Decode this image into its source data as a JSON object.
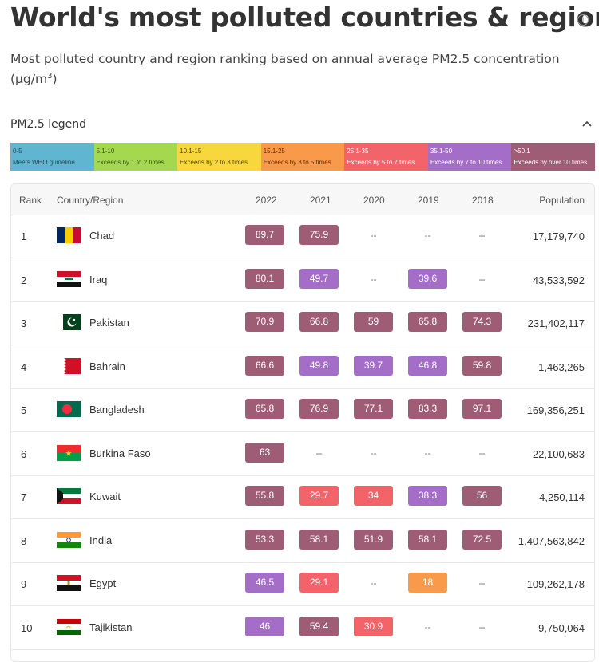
{
  "header": {
    "title": "World's most polluted countries & regions",
    "subtitle": "Most polluted country and region ranking based on annual average PM2.5 concentration (µg/m",
    "subtitle_sup": "3",
    "subtitle_end": ")",
    "info_icon": "info-icon"
  },
  "legend": {
    "title": "PM2.5 legend",
    "toggle_icon": "chevron-up-icon",
    "items": [
      {
        "range": "0-5",
        "label": "Meets WHO guideline",
        "color": "#60b6d1",
        "text_color": "#2b4a55"
      },
      {
        "range": "5.1-10",
        "label": "Exceeds by 1 to 2 times",
        "color": "#a3d84f",
        "text_color": "#3d5a12"
      },
      {
        "range": "10.1-15",
        "label": "Exceeds by 2 to 3 times",
        "color": "#f7d63e",
        "text_color": "#5a4c05"
      },
      {
        "range": "15.1-25",
        "label": "Exceeds by 3 to 5 times",
        "color": "#f99a4b",
        "text_color": "#5e3008"
      },
      {
        "range": "25.1-35",
        "label": "Exceeds by 5 to 7 times",
        "color": "#f2636a",
        "text_color": "#ffffff"
      },
      {
        "range": "35.1-50",
        "label": "Exceeds by 7 to 10 times",
        "color": "#a46dc7",
        "text_color": "#ffffff"
      },
      {
        "range": ">50.1",
        "label": "Exceeds by over 10 times",
        "color": "#9e5d74",
        "text_color": "#ffffff"
      }
    ]
  },
  "table": {
    "columns": {
      "rank": "Rank",
      "country": "Country/Region",
      "y2022": "2022",
      "y2021": "2021",
      "y2020": "2020",
      "y2019": "2019",
      "y2018": "2018",
      "population": "Population"
    },
    "empty_value": "--",
    "rows": [
      {
        "rank": "1",
        "country": "Chad",
        "flag": "chad",
        "values": [
          "89.7",
          "75.9",
          "--",
          "--",
          "--"
        ],
        "population": "17,179,740"
      },
      {
        "rank": "2",
        "country": "Iraq",
        "flag": "iraq",
        "values": [
          "80.1",
          "49.7",
          "--",
          "39.6",
          "--"
        ],
        "population": "43,533,592"
      },
      {
        "rank": "3",
        "country": "Pakistan",
        "flag": "pakistan",
        "values": [
          "70.9",
          "66.8",
          "59",
          "65.8",
          "74.3"
        ],
        "population": "231,402,117"
      },
      {
        "rank": "4",
        "country": "Bahrain",
        "flag": "bahrain",
        "values": [
          "66.6",
          "49.8",
          "39.7",
          "46.8",
          "59.8"
        ],
        "population": "1,463,265"
      },
      {
        "rank": "5",
        "country": "Bangladesh",
        "flag": "bangladesh",
        "values": [
          "65.8",
          "76.9",
          "77.1",
          "83.3",
          "97.1"
        ],
        "population": "169,356,251"
      },
      {
        "rank": "6",
        "country": "Burkina Faso",
        "flag": "burkina-faso",
        "values": [
          "63",
          "--",
          "--",
          "--",
          "--"
        ],
        "population": "22,100,683"
      },
      {
        "rank": "7",
        "country": "Kuwait",
        "flag": "kuwait",
        "values": [
          "55.8",
          "29.7",
          "34",
          "38.3",
          "56"
        ],
        "population": "4,250,114"
      },
      {
        "rank": "8",
        "country": "India",
        "flag": "india",
        "values": [
          "53.3",
          "58.1",
          "51.9",
          "58.1",
          "72.5"
        ],
        "population": "1,407,563,842"
      },
      {
        "rank": "9",
        "country": "Egypt",
        "flag": "egypt",
        "values": [
          "46.5",
          "29.1",
          "--",
          "18",
          "--"
        ],
        "population": "109,262,178"
      },
      {
        "rank": "10",
        "country": "Tajikistan",
        "flag": "tajikistan",
        "values": [
          "46",
          "59.4",
          "30.9",
          "--",
          "--"
        ],
        "population": "9,750,064"
      }
    ]
  }
}
